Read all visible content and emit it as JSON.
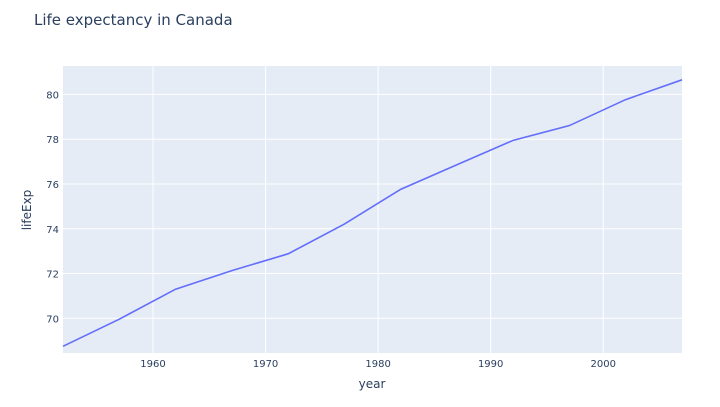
{
  "chart_data": {
    "type": "line",
    "title": "Life expectancy in Canada",
    "xlabel": "year",
    "ylabel": "lifeExp",
    "x": [
      1952,
      1957,
      1962,
      1967,
      1972,
      1977,
      1982,
      1987,
      1992,
      1997,
      2002,
      2007
    ],
    "series": [
      {
        "name": "Canada",
        "values": [
          68.75,
          69.96,
          71.3,
          72.13,
          72.88,
          74.21,
          75.76,
          76.86,
          77.95,
          78.61,
          79.77,
          80.653
        ],
        "color": "#636efa"
      }
    ],
    "xlim": [
      1952,
      2007
    ],
    "ylim": [
      68.45,
      81.27
    ],
    "xticks": [
      1960,
      1970,
      1980,
      1990,
      2000
    ],
    "yticks": [
      70,
      72,
      74,
      76,
      78,
      80
    ],
    "grid": true,
    "legend": false
  },
  "colors": {
    "plot_bg": "#e5ecf6",
    "grid": "#ffffff",
    "text": "#2a3f5f",
    "line": "#636efa"
  }
}
